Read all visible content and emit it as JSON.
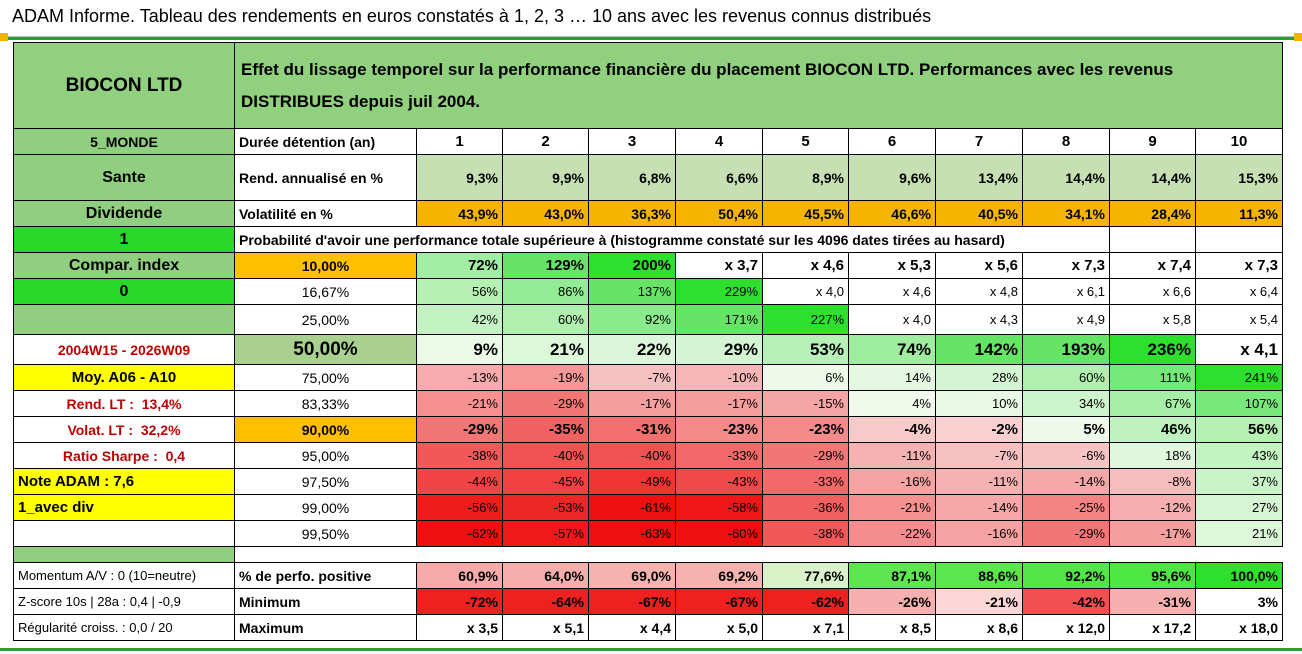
{
  "title": "ADAM Informe. Tableau des rendements en euros constatés à 1, 2, 3 … 10 ans avec les revenus connus distribués",
  "header": {
    "name": "BIOCON LTD",
    "description": "Effet du lissage temporel sur la performance financière du placement BIOCON LTD. Performances avec les revenus DISTRIBUES depuis juil 2004."
  },
  "sidebar": {
    "category": "5_MONDE",
    "sector": "Sante",
    "type": "Dividende",
    "flag_value": "1",
    "compar_label": "Compar. index",
    "compar_value": "0",
    "period": "2004W15 - 2026W09",
    "moy": "Moy. A06 - A10",
    "rend_lt_label": "Rend. LT :",
    "rend_lt_value": "13,4%",
    "volat_lt_label": "Volat. LT :",
    "volat_lt_value": "32,2%",
    "sharpe_label": "Ratio Sharpe :",
    "sharpe_value": "0,4",
    "note": "Note ADAM : 7,6",
    "avec_div": "1_avec div",
    "momentum": "Momentum A/V : 0 (10=neutre)",
    "zscore": "Z-score 10s | 28a : 0,4 | -0,9",
    "regularite": "Régularité croiss. : 0,0 / 20"
  },
  "labels": {
    "duree": "Durée détention (an)",
    "rend": "Rend. annualisé en %",
    "volat": "Volatilité en %",
    "proba": "Probabilité d'avoir une performance totale supérieure à (histogramme constaté sur les 4096 dates tirées au hasard)",
    "positive": "% de perfo. positive",
    "minimum": "Minimum",
    "maximum": "Maximum"
  },
  "years": [
    "1",
    "2",
    "3",
    "4",
    "5",
    "6",
    "7",
    "8",
    "9",
    "10"
  ],
  "rend": [
    "9,3%",
    "9,9%",
    "6,8%",
    "6,6%",
    "8,9%",
    "9,6%",
    "13,4%",
    "14,4%",
    "14,4%",
    "15,3%"
  ],
  "volat": [
    "43,9%",
    "43,0%",
    "36,3%",
    "50,4%",
    "45,5%",
    "46,6%",
    "40,5%",
    "34,1%",
    "28,4%",
    "11,3%"
  ],
  "prob_rows": [
    {
      "p": "10,00%",
      "v": [
        "72%",
        "129%",
        "200%",
        "x 3,7",
        "x 4,6",
        "x 5,3",
        "x 5,6",
        "x 7,3",
        "x 7,4",
        "x 7,3"
      ]
    },
    {
      "p": "16,67%",
      "v": [
        "56%",
        "86%",
        "137%",
        "229%",
        "x 4,0",
        "x 4,6",
        "x 4,8",
        "x 6,1",
        "x 6,6",
        "x 6,4"
      ]
    },
    {
      "p": "25,00%",
      "v": [
        "42%",
        "60%",
        "92%",
        "171%",
        "227%",
        "x 4,0",
        "x 4,3",
        "x 4,9",
        "x 5,8",
        "x 5,4"
      ]
    },
    {
      "p": "50,00%",
      "v": [
        "9%",
        "21%",
        "22%",
        "29%",
        "53%",
        "74%",
        "142%",
        "193%",
        "236%",
        "x 4,1"
      ]
    },
    {
      "p": "75,00%",
      "v": [
        "-13%",
        "-19%",
        "-7%",
        "-10%",
        "6%",
        "14%",
        "28%",
        "60%",
        "111%",
        "241%"
      ]
    },
    {
      "p": "83,33%",
      "v": [
        "-21%",
        "-29%",
        "-17%",
        "-17%",
        "-15%",
        "4%",
        "10%",
        "34%",
        "67%",
        "107%"
      ]
    },
    {
      "p": "90,00%",
      "v": [
        "-29%",
        "-35%",
        "-31%",
        "-23%",
        "-23%",
        "-4%",
        "-2%",
        "5%",
        "46%",
        "56%"
      ]
    },
    {
      "p": "95,00%",
      "v": [
        "-38%",
        "-40%",
        "-40%",
        "-33%",
        "-29%",
        "-11%",
        "-7%",
        "-6%",
        "18%",
        "43%"
      ]
    },
    {
      "p": "97,50%",
      "v": [
        "-44%",
        "-45%",
        "-49%",
        "-43%",
        "-33%",
        "-16%",
        "-11%",
        "-14%",
        "-8%",
        "37%"
      ]
    },
    {
      "p": "99,00%",
      "v": [
        "-56%",
        "-53%",
        "-61%",
        "-58%",
        "-36%",
        "-21%",
        "-14%",
        "-25%",
        "-12%",
        "27%"
      ]
    },
    {
      "p": "99,50%",
      "v": [
        "-62%",
        "-57%",
        "-63%",
        "-60%",
        "-38%",
        "-22%",
        "-16%",
        "-29%",
        "-17%",
        "21%"
      ]
    }
  ],
  "positive": [
    "60,9%",
    "64,0%",
    "69,0%",
    "69,2%",
    "77,6%",
    "87,1%",
    "88,6%",
    "92,2%",
    "95,6%",
    "100,0%"
  ],
  "minimum": [
    "-72%",
    "-64%",
    "-67%",
    "-67%",
    "-62%",
    "-26%",
    "-21%",
    "-42%",
    "-31%",
    "3%"
  ],
  "maximum": [
    "x 3,5",
    "x 5,1",
    "x 4,4",
    "x 5,0",
    "x 7,1",
    "x 8,5",
    "x 8,6",
    "x 12,0",
    "x 17,2",
    "x 18,0"
  ],
  "colors": {
    "header_green": "#91d07e",
    "rend_row": "#c6dfb3",
    "volat_row": "#f4b400",
    "yellow": "#ffff00",
    "orange": "#ffc000",
    "bright_green": "#28d828",
    "red_text": "#c00000"
  }
}
